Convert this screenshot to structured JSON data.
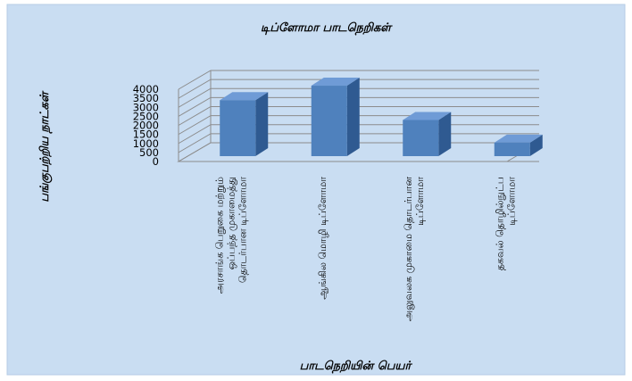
{
  "chart_data": {
    "type": "bar",
    "title": "டிப்ளோமா பாடநெறிகள்",
    "xlabel": "பாடநெறியின் பெயர்",
    "ylabel": "பங்குபற்றிய நாட்கள்",
    "categories": [
      "அரசாங்க பெறுகை மற்றும் ஒப்பந்த முகாமைத்து தொடர்பான டிப்ளோமா",
      "ஆங்கில மொழி டிப்ளோமா",
      "அலுவலக முகாமை தொடர்பான டிப்ளோமா",
      "தகவல் தொழில்நுட்ப டிப்ளோமா"
    ],
    "values": [
      3100,
      3900,
      2000,
      750
    ],
    "yticks": [
      0,
      500,
      1000,
      1500,
      2000,
      2500,
      3000,
      3500,
      4000
    ],
    "ylim": [
      0,
      4000
    ],
    "grid": true,
    "legend": false,
    "colors": {
      "background": "#c9ddf2",
      "bar_front": "#4f81bd",
      "bar_side": "#2f5a91",
      "bar_top": "#6f9bd6",
      "grid": "#8c8c8c"
    }
  }
}
